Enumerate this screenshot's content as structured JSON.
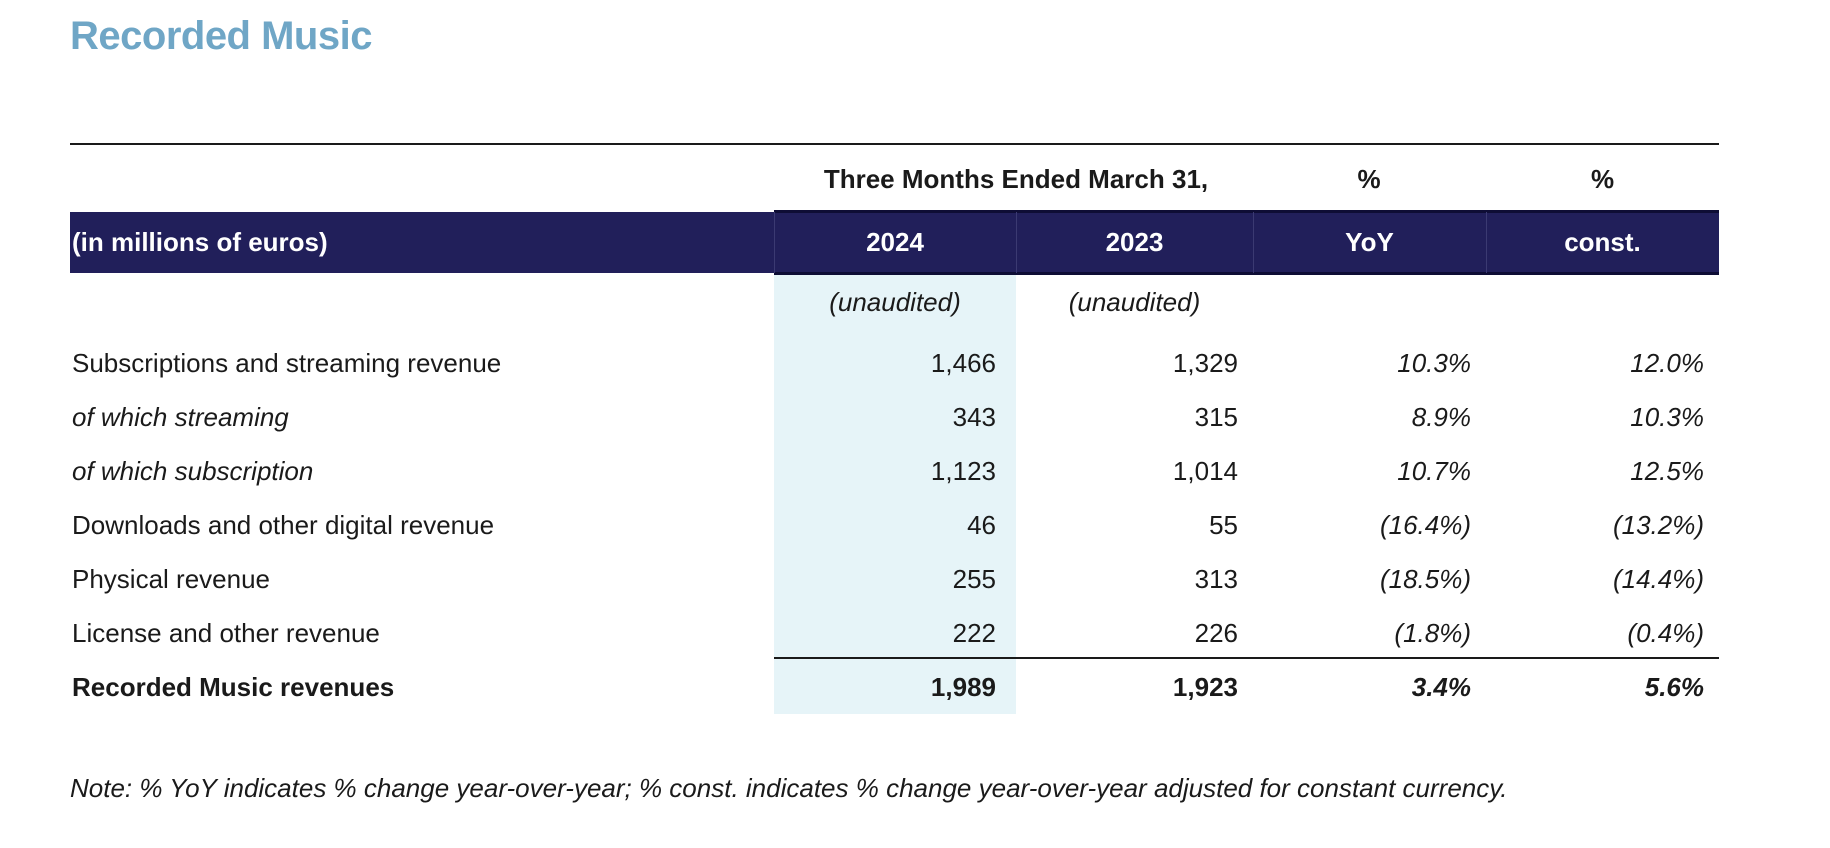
{
  "title": "Recorded Music",
  "header": {
    "period": "Three Months Ended March 31,",
    "pct_yoy_top": "%",
    "pct_const_top": "%",
    "unit_label": "(in millions of euros)",
    "col_2024": "2024",
    "col_2023": "2023",
    "col_yoy": "YoY",
    "col_const": "const.",
    "unaudited_2024": "(unaudited)",
    "unaudited_2023": "(unaudited)"
  },
  "rows": [
    {
      "label": "Subscriptions and streaming revenue",
      "v2024": "1,466",
      "v2023": "1,329",
      "yoy": "10.3%",
      "const": "12.0%"
    },
    {
      "label": "of which streaming",
      "v2024": "343",
      "v2023": "315",
      "yoy": "8.9%",
      "const": "10.3%"
    },
    {
      "label": "of which subscription",
      "v2024": "1,123",
      "v2023": "1,014",
      "yoy": "10.7%",
      "const": "12.5%"
    },
    {
      "label": "Downloads and other digital revenue",
      "v2024": "46",
      "v2023": "55",
      "yoy": "(16.4%)",
      "const": "(13.2%)"
    },
    {
      "label": "Physical revenue",
      "v2024": "255",
      "v2023": "313",
      "yoy": "(18.5%)",
      "const": "(14.4%)"
    },
    {
      "label": "License and other revenue",
      "v2024": "222",
      "v2023": "226",
      "yoy": "(1.8%)",
      "const": "(0.4%)"
    },
    {
      "label": "Recorded Music revenues",
      "v2024": "1,989",
      "v2023": "1,923",
      "yoy": "3.4%",
      "const": "5.6%"
    }
  ],
  "note": "Note: % YoY indicates % change year-over-year; % const. indicates % change year-over-year adjusted for constant currency.",
  "colors": {
    "title": "#6fa6c6",
    "header_band": "#211f5a",
    "highlight_column": "#e6f4f8"
  }
}
